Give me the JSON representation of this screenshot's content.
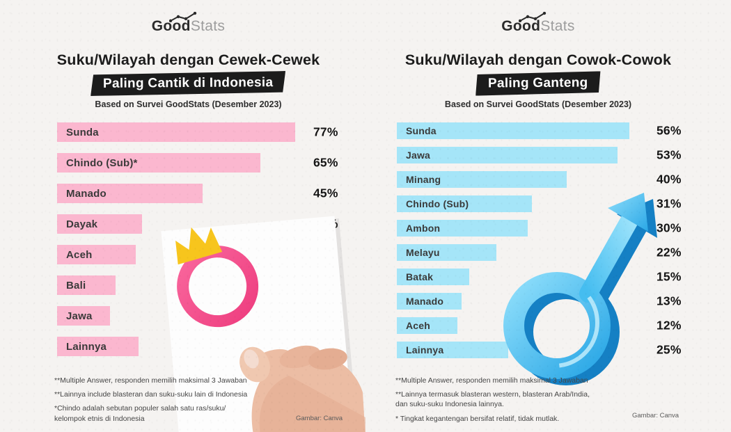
{
  "background_color": "#f5f3f1",
  "accent_black": "#1c1c1c",
  "panels": [
    {
      "logo": {
        "bold": "Good",
        "light": "Stats",
        "icon": "trend-line-icon"
      },
      "title": "Suku/Wilayah dengan Cewek-Cewek",
      "highlight": "Paling Cantik di Indonesia",
      "subtitle": "Based on Survei GoodStats (Desember 2023)",
      "bar_color": "#fbb7cf",
      "symbol_color": "#f24f8b",
      "crown_color": "#f7c51d",
      "footnotes": [
        "**Multiple Answer, responden memilih maksimal 3 Jawaban",
        "**Lainnya include blasteran dan suku-suku lain di Indonesia",
        "*Chindo adalah sebutan populer salah satu ras/suku/\nkelompok etnis di Indonesia"
      ],
      "credit": "Gambar: Canva",
      "illustration": "female-symbol-with-crown-held-by-hand"
    },
    {
      "logo": {
        "bold": "Good",
        "light": "Stats",
        "icon": "trend-line-icon"
      },
      "title": "Suku/Wilayah dengan Cowok-Cowok",
      "highlight": "Paling Ganteng",
      "subtitle": "Based on Survei GoodStats (Desember 2023)",
      "bar_color": "#a5e5f8",
      "symbol_color": "#2aa7e6",
      "footnotes": [
        "**Multiple Answer, responden memilih maksimal 3 Jawaban",
        "**Lainnya termasuk blasteran western, blasteran Arab/India,\ndan suku-suku Indonesia lainnya.",
        "* Tingkat kegantengan bersifat relatif, tidak mutlak."
      ],
      "credit": "Gambar: Canva",
      "illustration": "male-symbol-3d"
    }
  ],
  "chart_data": [
    {
      "type": "bar",
      "orientation": "horizontal",
      "title": "Suku/Wilayah dengan Cewek-Cewek Paling Cantik di Indonesia",
      "subtitle": "Based on Survei GoodStats (Desember 2023)",
      "categories": [
        "Sunda",
        "Chindo (Sub)*",
        "Manado",
        "Dayak",
        "Aceh",
        "Bali",
        "Jawa",
        "Lainnya"
      ],
      "values": [
        77,
        65,
        45,
        24,
        22,
        15,
        13,
        23
      ],
      "unit": "%",
      "value_labels": [
        "77%",
        "65%",
        "45%",
        "24%",
        "22%",
        "15%",
        "13%",
        "23%"
      ],
      "bar_color": "#fbb7cf",
      "xlim": [
        0,
        100
      ],
      "grid": false,
      "legend": false
    },
    {
      "type": "bar",
      "orientation": "horizontal",
      "title": "Suku/Wilayah dengan Cowok-Cowok Paling Ganteng",
      "subtitle": "Based on Survei GoodStats (Desember 2023)",
      "categories": [
        "Sunda",
        "Jawa",
        "Minang",
        "Chindo (Sub)",
        "Ambon",
        "Melayu",
        "Batak",
        "Manado",
        "Aceh",
        "Lainnya"
      ],
      "values": [
        56,
        53,
        40,
        31,
        30,
        22,
        15,
        13,
        12,
        25
      ],
      "unit": "%",
      "value_labels": [
        "56%",
        "53%",
        "40%",
        "31%",
        "30%",
        "22%",
        "15%",
        "13%",
        "12%",
        "25%"
      ],
      "bar_color": "#a5e5f8",
      "xlim": [
        0,
        100
      ],
      "grid": false,
      "legend": false
    }
  ]
}
